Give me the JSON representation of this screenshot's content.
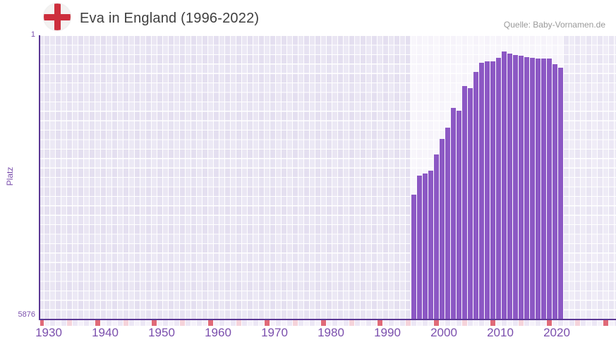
{
  "header": {
    "title": "Eva in England (1996-2022)",
    "source": "Quelle: Baby-Vornamen.de"
  },
  "colors": {
    "bar": "#8c58c4",
    "axis": "#5b3794",
    "tick_label": "#7b4fad",
    "title_text": "#3f3f3f",
    "source_text": "#999999",
    "flag_circle": "#f4f2f1",
    "flag_cross_red": "#cd2e3c",
    "bg_outside_range": "#e4dff0",
    "bg_data_range": "#f6f3fa",
    "bg_after_range": "#e9e5f3",
    "marker_decade": "#e06a78",
    "marker_half_decade": "#f5d3da",
    "marker_even": "#ece7f5",
    "marker_odd": "#f5f2fa"
  },
  "chart_data": {
    "type": "bar",
    "title": "Eva in England (1996-2022)",
    "xlabel": "",
    "ylabel": "Platz",
    "y_axis_top_label": "1",
    "y_axis_bottom_label": "5876",
    "ylim": [
      1,
      5876
    ],
    "y_inverted": true,
    "grid": true,
    "legend": null,
    "x_range": [
      1930,
      2032
    ],
    "x_ticks": [
      "1930",
      "1940",
      "1950",
      "1960",
      "1970",
      "1980",
      "1990",
      "2000",
      "2010",
      "2020"
    ],
    "categories": [
      1996,
      1997,
      1998,
      1999,
      2000,
      2001,
      2002,
      2003,
      2004,
      2005,
      2006,
      2007,
      2008,
      2009,
      2010,
      2011,
      2012,
      2013,
      2014,
      2015,
      2016,
      2017,
      2018,
      2019,
      2020,
      2021,
      2022
    ],
    "values": [
      3304,
      2909,
      2865,
      2807,
      2471,
      2149,
      1915,
      1506,
      1565,
      1053,
      1097,
      768,
      575,
      546,
      537,
      473,
      337,
      381,
      415,
      429,
      454,
      464,
      480,
      490,
      490,
      605,
      673
    ]
  }
}
